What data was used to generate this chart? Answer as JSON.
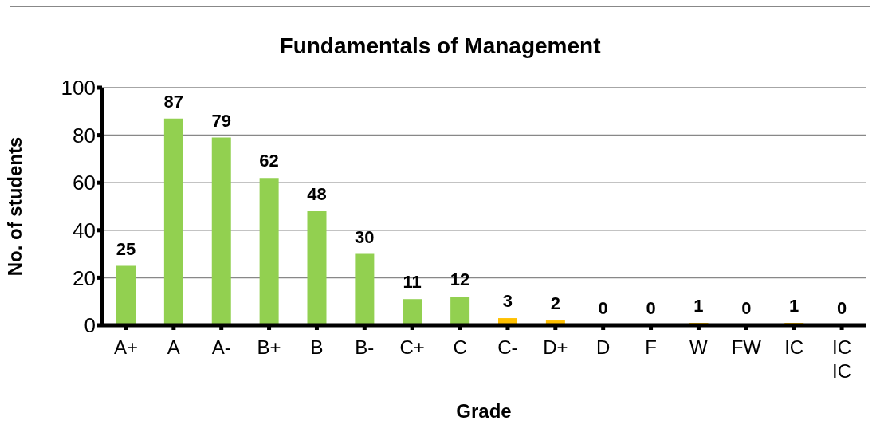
{
  "chart_data": {
    "type": "bar",
    "title": "Fundamentals of Management",
    "xlabel": "Grade",
    "ylabel": "No. of students",
    "categories": [
      "A+",
      "A",
      "A-",
      "B+",
      "B",
      "B-",
      "C+",
      "C",
      "C-",
      "D+",
      "D",
      "F",
      "W",
      "FW",
      "IC",
      "IC IC"
    ],
    "values": [
      25,
      87,
      79,
      62,
      48,
      30,
      11,
      12,
      3,
      2,
      0,
      0,
      1,
      0,
      1,
      0
    ],
    "colors": [
      "#92d050",
      "#92d050",
      "#92d050",
      "#92d050",
      "#92d050",
      "#92d050",
      "#92d050",
      "#92d050",
      "#ffc000",
      "#ffc000",
      "#ffc000",
      "#ffc000",
      "#ffc000",
      "#ffc000",
      "#ffc000",
      "#ffc000"
    ],
    "ylim": [
      0,
      100
    ],
    "yticks": [
      0,
      20,
      40,
      60,
      80,
      100
    ],
    "grid": "y",
    "data_labels": true
  }
}
